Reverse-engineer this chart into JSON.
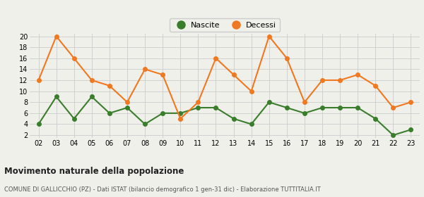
{
  "years": [
    "02",
    "03",
    "04",
    "05",
    "06",
    "07",
    "08",
    "09",
    "10",
    "11",
    "12",
    "13",
    "14",
    "15",
    "16",
    "17",
    "18",
    "19",
    "20",
    "21",
    "22",
    "23"
  ],
  "nascite": [
    4,
    9,
    5,
    9,
    6,
    7,
    4,
    6,
    6,
    7,
    7,
    5,
    4,
    8,
    7,
    6,
    7,
    7,
    7,
    5,
    2,
    3
  ],
  "decessi": [
    12,
    20,
    16,
    12,
    11,
    8,
    14,
    13,
    5,
    8,
    16,
    13,
    10,
    20,
    16,
    8,
    12,
    12,
    13,
    11,
    7,
    8
  ],
  "nascite_color": "#3a7d2c",
  "decessi_color": "#f07820",
  "background_color": "#f0f0eb",
  "grid_color": "#cccccc",
  "ylim_min": 1.5,
  "ylim_max": 20.5,
  "yticks": [
    2,
    4,
    6,
    8,
    10,
    12,
    14,
    16,
    18,
    20
  ],
  "title": "Movimento naturale della popolazione",
  "subtitle": "COMUNE DI GALLICCHIO (PZ) - Dati ISTAT (bilancio demografico 1 gen-31 dic) - Elaborazione TUTTITALIA.IT",
  "legend_nascite": "Nascite",
  "legend_decessi": "Decessi",
  "marker_size": 4,
  "line_width": 1.5
}
